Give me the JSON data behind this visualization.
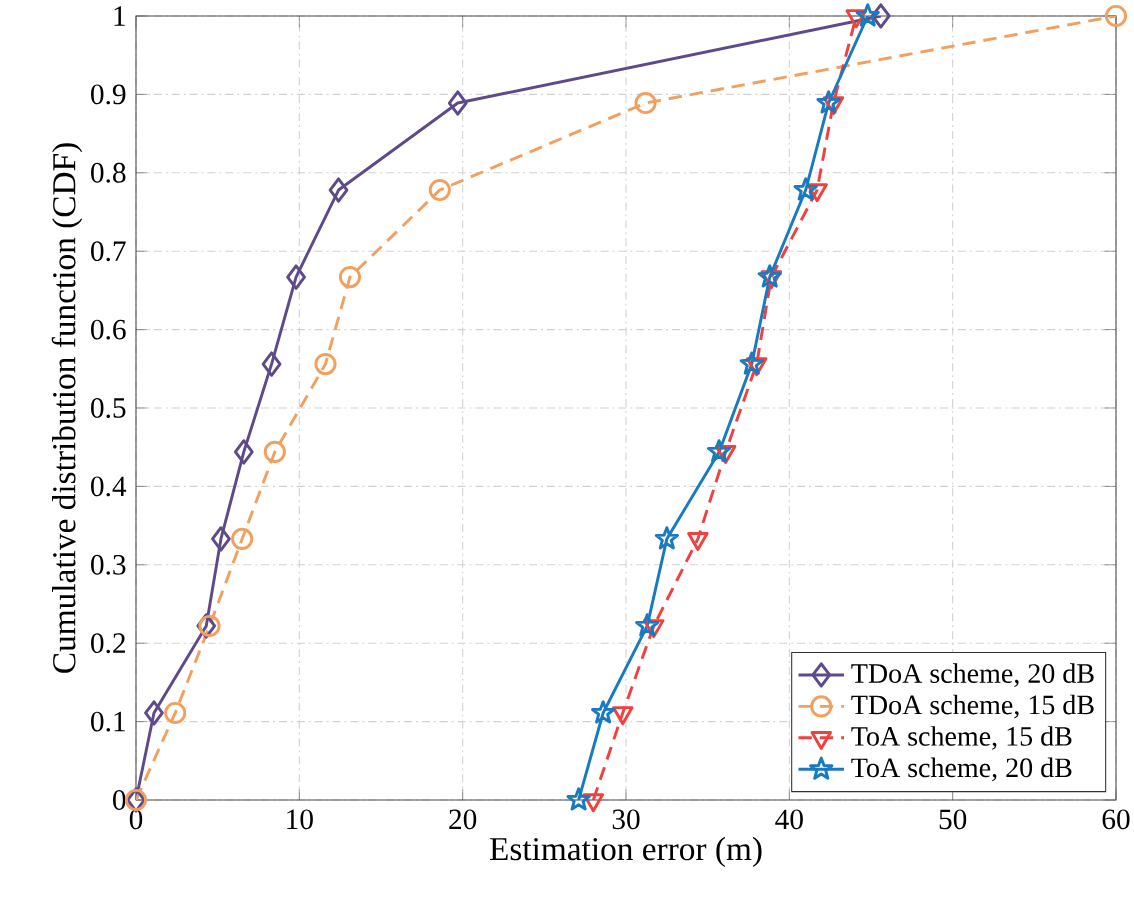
{
  "chart_data": {
    "type": "line",
    "xlabel": "Estimation error (m)",
    "ylabel": "Cumulative distribution function (CDF)",
    "xlim": [
      0,
      60
    ],
    "ylim": [
      0,
      1
    ],
    "xticks": [
      0,
      10,
      20,
      30,
      40,
      50,
      60
    ],
    "yticks": [
      0,
      0.1,
      0.2,
      0.3,
      0.4,
      0.5,
      0.6,
      0.7,
      0.8,
      0.9,
      1
    ],
    "grid": true,
    "legend": "bottom right",
    "series": [
      {
        "name": "TDoA scheme, 20 dB",
        "color": "#5e4a8a",
        "marker": "diamond",
        "line_style": "solid",
        "x": [
          0,
          1.1,
          4.3,
          5.2,
          6.6,
          8.3,
          9.8,
          12.4,
          19.7,
          45.6
        ],
        "values": [
          0,
          0.111,
          0.222,
          0.333,
          0.444,
          0.556,
          0.667,
          0.778,
          0.889,
          1
        ]
      },
      {
        "name": "TDoA scheme, 15 dB",
        "color": "#f0a060",
        "marker": "circle",
        "line_style": "dashed",
        "x": [
          0,
          2.4,
          4.5,
          6.5,
          8.5,
          11.6,
          13.1,
          18.6,
          31.2,
          60
        ],
        "values": [
          0,
          0.111,
          0.222,
          0.333,
          0.444,
          0.556,
          0.667,
          0.778,
          0.889,
          1
        ]
      },
      {
        "name": "ToA scheme, 15 dB",
        "color": "#f04040",
        "marker": "triangle",
        "line_style": "dashed",
        "x": [
          28.0,
          29.8,
          31.7,
          34.4,
          36.1,
          38.0,
          38.9,
          41.7,
          42.7,
          44.1
        ],
        "values": [
          0,
          0.111,
          0.222,
          0.333,
          0.444,
          0.556,
          0.667,
          0.778,
          0.889,
          1
        ]
      },
      {
        "name": "ToA scheme, 20 dB",
        "color": "#1a7ac0",
        "marker": "star",
        "line_style": "solid",
        "x": [
          27.1,
          28.6,
          31.3,
          32.5,
          35.7,
          37.7,
          38.8,
          41.0,
          42.4,
          44.8
        ],
        "values": [
          0,
          0.111,
          0.222,
          0.333,
          0.444,
          0.556,
          0.667,
          0.778,
          0.889,
          1
        ]
      }
    ]
  }
}
